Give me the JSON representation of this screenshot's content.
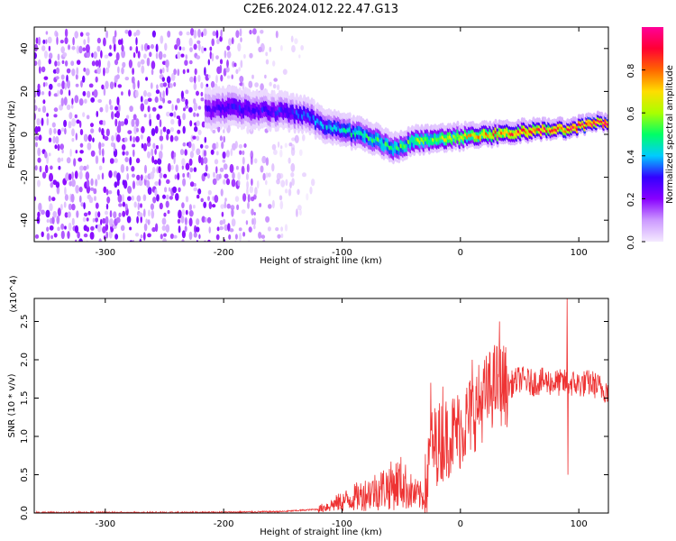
{
  "title": "C2E6.2024.012.22.47.G13",
  "chart_data": [
    {
      "type": "heatmap",
      "name": "spectrogram",
      "xlabel": "Height of straight line (km)",
      "ylabel": "Frequency (Hz)",
      "xlim": [
        -360,
        125
      ],
      "ylim": [
        -50,
        50
      ],
      "xticks": [
        -300,
        -200,
        -100,
        0,
        100
      ],
      "yticks": [
        -40,
        -20,
        0,
        20,
        40
      ],
      "colorbar": {
        "label": "Normalized spectral amplitude",
        "range": [
          0.0,
          1.0
        ],
        "ticks": [
          0.0,
          0.2,
          0.4,
          0.6,
          0.8
        ],
        "colors": [
          "#f4eaff",
          "#cc99ff",
          "#8800ff",
          "#3300ff",
          "#00ccff",
          "#00ff66",
          "#aaff00",
          "#ffdd00",
          "#ff6600",
          "#ff0033",
          "#ff0099"
        ]
      },
      "ridge": {
        "description": "frequency of peak amplitude vs height",
        "x": [
          -210,
          -190,
          -170,
          -150,
          -130,
          -110,
          -90,
          -70,
          -55,
          -40,
          -20,
          0,
          20,
          40,
          60,
          80,
          100,
          115,
          125
        ],
        "y": [
          12,
          13,
          11,
          11,
          9,
          3,
          1,
          -3,
          -6,
          -3,
          -1,
          -1,
          0,
          1,
          2,
          2,
          4,
          6,
          6
        ],
        "amplitude": [
          0.25,
          0.3,
          0.28,
          0.3,
          0.35,
          0.4,
          0.45,
          0.5,
          0.5,
          0.55,
          0.6,
          0.65,
          0.75,
          0.8,
          0.85,
          0.85,
          0.9,
          0.95,
          0.95
        ]
      },
      "noise_region": {
        "x_range": [
          -360,
          -130
        ],
        "amplitude": 0.1
      }
    },
    {
      "type": "line",
      "name": "snr",
      "xlabel": "Height of straight line (km)",
      "ylabel": "SNR (10 * v/v)",
      "yscale_label": "(x10^4)",
      "xlim": [
        -360,
        125
      ],
      "ylim": [
        0.0,
        2.8
      ],
      "xticks": [
        -300,
        -200,
        -100,
        0,
        100
      ],
      "yticks": [
        0.0,
        0.5,
        1.0,
        1.5,
        2.0,
        2.5
      ],
      "color": "#ee3333",
      "series": [
        {
          "name": "SNR",
          "x": [
            -360,
            -300,
            -200,
            -150,
            -120,
            -110,
            -100,
            -90,
            -80,
            -70,
            -60,
            -50,
            -40,
            -30,
            -25,
            -20,
            -10,
            0,
            10,
            20,
            30,
            40,
            50,
            60,
            70,
            80,
            90,
            100,
            110,
            120,
            125
          ],
          "y": [
            0.0,
            0.0,
            0.01,
            0.02,
            0.05,
            0.1,
            0.15,
            0.2,
            0.25,
            0.3,
            0.35,
            0.4,
            0.25,
            0.2,
            0.8,
            0.9,
            1.0,
            1.1,
            1.3,
            1.5,
            1.7,
            1.65,
            1.75,
            1.7,
            1.72,
            1.7,
            1.7,
            1.68,
            1.7,
            1.62,
            1.6
          ]
        }
      ],
      "noise_spikes": [
        {
          "x": -25,
          "y_max": 1.7
        },
        {
          "x": -15,
          "y_max": 1.65
        },
        {
          "x": 10,
          "y_max": 2.0
        },
        {
          "x": 33,
          "y_max": 2.5
        },
        {
          "x": 90,
          "y_max": 2.8
        },
        {
          "x": 90,
          "y_min": 0.5
        }
      ]
    }
  ]
}
